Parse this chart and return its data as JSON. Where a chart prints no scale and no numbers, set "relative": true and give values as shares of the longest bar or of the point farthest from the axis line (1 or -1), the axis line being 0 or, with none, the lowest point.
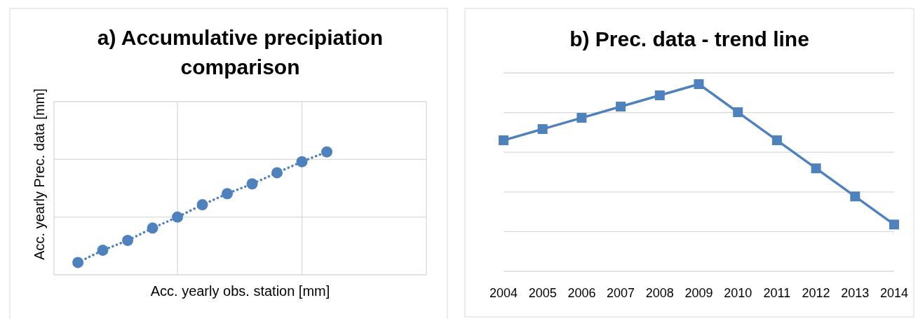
{
  "chart_data": [
    {
      "type": "line",
      "title": "a) Accumulative precipiation comparison",
      "xlabel": "Acc. yearly obs. station [mm]",
      "ylabel": "Acc. yearly Prec. data [mm]",
      "relative": true,
      "categories": [
        null,
        null,
        null,
        null,
        null,
        null,
        null,
        null,
        null,
        null,
        null
      ],
      "series": [
        {
          "color": "#4f81bd",
          "values": [
            0.1,
            0.2,
            0.28,
            0.38,
            0.47,
            0.57,
            0.66,
            0.74,
            0.83,
            0.92,
            1
          ]
        }
      ],
      "marker": "circle",
      "line_style": "dotted",
      "grid": true
    },
    {
      "type": "line",
      "title": "b) Prec. data - trend line",
      "relative": true,
      "categories": [
        "2004",
        "2005",
        "2006",
        "2007",
        "2008",
        "2009",
        "2010",
        "2011",
        "2012",
        "2013",
        "2014"
      ],
      "series": [
        {
          "color": "#4f81bd",
          "values": [
            0.7,
            0.76,
            0.82,
            0.88,
            0.94,
            1,
            0.85,
            0.7,
            0.55,
            0.4,
            0.25
          ]
        }
      ],
      "marker": "square",
      "line_style": "solid",
      "grid": "y"
    }
  ]
}
